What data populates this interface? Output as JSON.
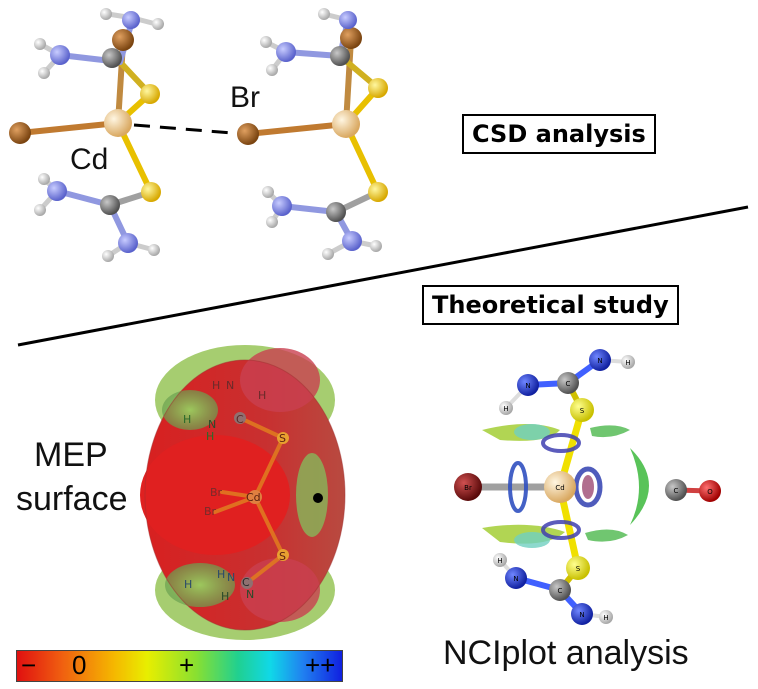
{
  "top": {
    "cd_label": "Cd",
    "br_label": "Br",
    "box_label": "CSD analysis"
  },
  "bottom": {
    "box_label": "Theoretical study",
    "mep_label_line1": "MEP",
    "mep_label_line2": "surface",
    "nci_label": "NCIplot analysis",
    "mep_atoms": {
      "h": "H",
      "n": "N",
      "c": "C",
      "s": "S",
      "cd": "Cd",
      "br": "Br"
    },
    "nci_atoms": {
      "h": "H",
      "n": "N",
      "c": "C",
      "s": "S",
      "cd": "Cd",
      "br": "Br",
      "o": "O"
    }
  },
  "scale": {
    "minus": "−",
    "zero": "0",
    "plus": "+",
    "plusplus": "++"
  },
  "colors": {
    "cd_atom": "#f0cf94",
    "br_atom": "#a86a22",
    "s_atom": "#f2d010",
    "n_atom": "#7f86e6",
    "c_atom": "#808080",
    "h_atom": "#e8e8e8",
    "nci_br": "#8a1a1a",
    "nci_n": "#1f3fd8",
    "nci_o": "#e01010"
  }
}
